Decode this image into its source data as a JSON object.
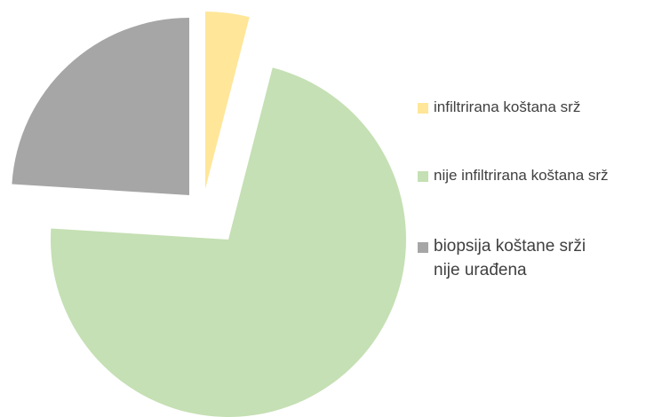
{
  "chart_data": {
    "type": "pie",
    "categories": [
      "infiltrirana koštana srž",
      "nije infiltrirana koštana srž",
      "biopsija koštane srži nije urađena"
    ],
    "values": [
      4,
      72,
      24
    ],
    "colors": [
      "#ffe699",
      "#c5e0b4",
      "#a6a6a6"
    ],
    "legend": "right"
  }
}
